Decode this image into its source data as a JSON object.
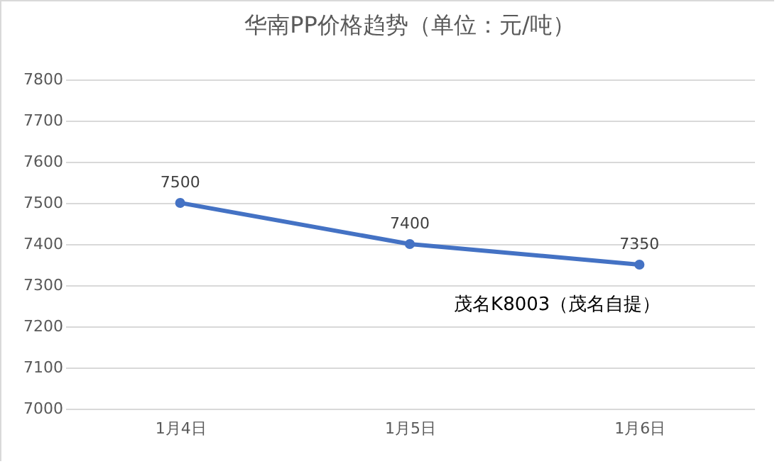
{
  "chart_data": {
    "type": "line",
    "title": "华南PP价格趋势（单位：元/吨）",
    "categories": [
      "1月4日",
      "1月5日",
      "1月6日"
    ],
    "series": [
      {
        "name": "茂名K8003（茂名自提）",
        "color": "#4472c4",
        "values": [
          7500,
          7400,
          7350
        ]
      }
    ],
    "ylim": [
      7000,
      7800
    ],
    "yticks": [
      7000,
      7100,
      7200,
      7300,
      7400,
      7500,
      7600,
      7700,
      7800
    ],
    "grid": "y",
    "marker": "circle",
    "data_labels": true
  }
}
